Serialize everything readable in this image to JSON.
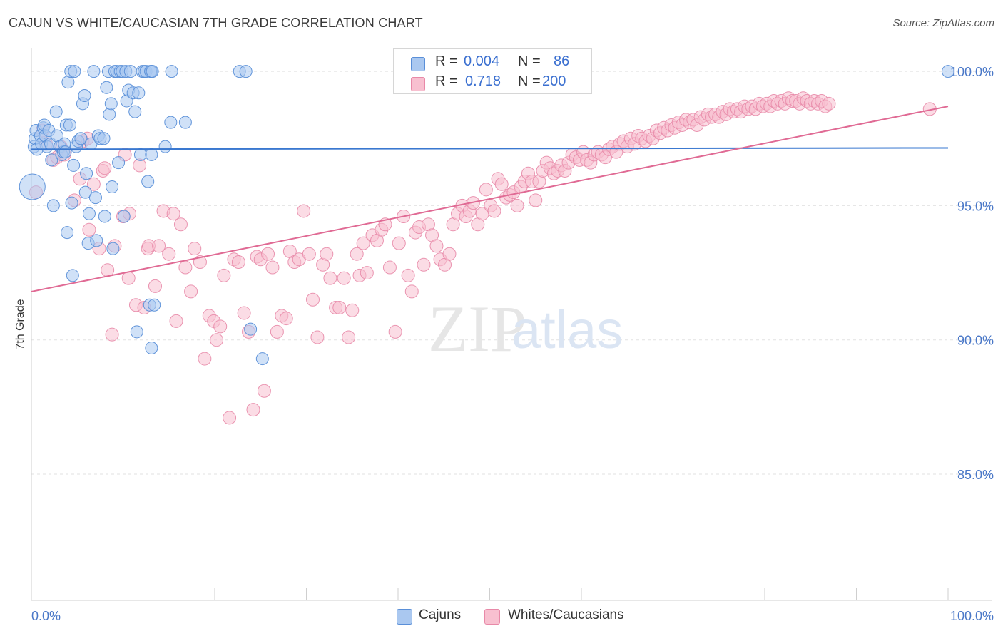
{
  "title": "CAJUN VS WHITE/CAUCASIAN 7TH GRADE CORRELATION CHART",
  "source": "Source: ZipAtlas.com",
  "watermark": {
    "zip": "ZIP",
    "atlas": "atlas"
  },
  "legend": {
    "r_label": "R =",
    "n_label": "N =",
    "rows": [
      {
        "name": "Cajuns",
        "r": "0.004",
        "n": "86",
        "fill": "#aac8f0",
        "stroke": "#5a8fd8"
      },
      {
        "name": "Whites/Caucasians",
        "r": "0.718",
        "n": "200",
        "fill": "#f8c0d0",
        "stroke": "#e889a8"
      }
    ]
  },
  "chart_data": {
    "type": "scatter",
    "title": "CAJUN VS WHITE/CAUCASIAN 7TH GRADE CORRELATION CHART",
    "ylabel": "7th Grade",
    "xlabel": "",
    "xlim": [
      0,
      100
    ],
    "ylim": [
      80.3,
      100.8
    ],
    "x_tick_labels": [
      "0.0%",
      "100.0%"
    ],
    "y_ticks": [
      85,
      90,
      95,
      100
    ],
    "y_tick_labels": [
      "85.0%",
      "90.0%",
      "95.0%",
      "100.0%"
    ],
    "series": [
      {
        "name": "Cajuns",
        "color": "#5a8fd8",
        "fill": "#aac8f0",
        "trend": {
          "x": [
            0,
            100
          ],
          "y": [
            97.1,
            97.15
          ]
        },
        "points": [
          [
            0.1,
            95.7
          ],
          [
            0.3,
            97.2
          ],
          [
            0.4,
            97.5
          ],
          [
            0.5,
            97.8
          ],
          [
            0.6,
            97.1
          ],
          [
            1.0,
            97.6
          ],
          [
            1.1,
            97.3
          ],
          [
            1.3,
            97.9
          ],
          [
            1.4,
            98.0
          ],
          [
            1.5,
            97.6
          ],
          [
            1.7,
            97.2
          ],
          [
            1.9,
            97.8
          ],
          [
            2.1,
            97.3
          ],
          [
            2.2,
            96.7
          ],
          [
            2.4,
            95.0
          ],
          [
            2.7,
            98.5
          ],
          [
            2.8,
            97.6
          ],
          [
            3.1,
            97.2
          ],
          [
            3.3,
            96.9
          ],
          [
            3.5,
            97.0
          ],
          [
            3.6,
            97.3
          ],
          [
            3.7,
            97.0
          ],
          [
            3.8,
            98.0
          ],
          [
            3.9,
            94.0
          ],
          [
            4.0,
            99.6
          ],
          [
            4.2,
            98.0
          ],
          [
            4.3,
            100.0
          ],
          [
            4.4,
            95.1
          ],
          [
            4.5,
            92.4
          ],
          [
            4.6,
            96.5
          ],
          [
            4.7,
            100.0
          ],
          [
            4.9,
            97.2
          ],
          [
            5.1,
            97.4
          ],
          [
            5.4,
            97.5
          ],
          [
            5.6,
            98.8
          ],
          [
            5.8,
            99.1
          ],
          [
            5.9,
            95.5
          ],
          [
            6.0,
            96.2
          ],
          [
            6.2,
            93.6
          ],
          [
            6.3,
            94.7
          ],
          [
            6.5,
            97.3
          ],
          [
            6.8,
            100.0
          ],
          [
            7.0,
            95.3
          ],
          [
            7.1,
            93.7
          ],
          [
            7.3,
            97.6
          ],
          [
            7.5,
            97.5
          ],
          [
            7.9,
            97.5
          ],
          [
            8.0,
            94.6
          ],
          [
            8.2,
            99.4
          ],
          [
            8.4,
            100.0
          ],
          [
            8.5,
            98.4
          ],
          [
            8.7,
            98.8
          ],
          [
            8.8,
            95.7
          ],
          [
            8.9,
            93.4
          ],
          [
            9.1,
            100.0
          ],
          [
            9.3,
            100.0
          ],
          [
            9.5,
            96.6
          ],
          [
            9.7,
            100.0
          ],
          [
            9.9,
            100.0
          ],
          [
            10.1,
            94.6
          ],
          [
            10.3,
            100.0
          ],
          [
            10.4,
            98.9
          ],
          [
            10.6,
            99.3
          ],
          [
            10.8,
            100.0
          ],
          [
            11.1,
            99.2
          ],
          [
            11.3,
            98.5
          ],
          [
            11.5,
            90.3
          ],
          [
            11.7,
            99.2
          ],
          [
            11.9,
            96.9
          ],
          [
            12.1,
            100.0
          ],
          [
            12.3,
            100.0
          ],
          [
            12.5,
            100.0
          ],
          [
            12.7,
            95.9
          ],
          [
            12.9,
            91.3
          ],
          [
            13.1,
            89.7
          ],
          [
            13.4,
            91.3
          ],
          [
            13.1,
            100.0
          ],
          [
            13.0,
            100.0
          ],
          [
            13.2,
            100.0
          ],
          [
            13.1,
            96.9
          ],
          [
            14.6,
            97.2
          ],
          [
            15.2,
            98.1
          ],
          [
            15.3,
            100.0
          ],
          [
            16.8,
            98.1
          ],
          [
            22.7,
            100.0
          ],
          [
            23.4,
            100.0
          ],
          [
            23.9,
            90.4
          ],
          [
            25.2,
            89.3
          ],
          [
            100.0,
            100.0
          ]
        ]
      },
      {
        "name": "Whites/Caucasians",
        "color": "#e889a8",
        "fill": "#f8c0d0",
        "trend": {
          "x": [
            0,
            100
          ],
          "y": [
            91.8,
            98.7
          ]
        },
        "points": [
          [
            0.5,
            95.5
          ],
          [
            1.2,
            97.8
          ],
          [
            1.6,
            97.3
          ],
          [
            2.4,
            96.7
          ],
          [
            2.8,
            96.8
          ],
          [
            3.2,
            97.2
          ],
          [
            3.6,
            96.9
          ],
          [
            4.7,
            95.2
          ],
          [
            5.3,
            96.0
          ],
          [
            5.6,
            97.4
          ],
          [
            6.1,
            97.5
          ],
          [
            6.3,
            94.1
          ],
          [
            6.8,
            95.8
          ],
          [
            7.4,
            93.4
          ],
          [
            7.8,
            96.3
          ],
          [
            8.0,
            96.4
          ],
          [
            8.3,
            92.6
          ],
          [
            8.8,
            90.2
          ],
          [
            9.1,
            93.5
          ],
          [
            10.0,
            94.6
          ],
          [
            10.2,
            96.9
          ],
          [
            10.6,
            92.3
          ],
          [
            10.7,
            94.7
          ],
          [
            11.4,
            91.3
          ],
          [
            11.8,
            96.5
          ],
          [
            12.3,
            91.2
          ],
          [
            12.7,
            93.4
          ],
          [
            12.8,
            93.5
          ],
          [
            13.5,
            92.0
          ],
          [
            13.9,
            93.5
          ],
          [
            14.4,
            94.8
          ],
          [
            15.0,
            93.2
          ],
          [
            15.5,
            94.7
          ],
          [
            15.8,
            90.7
          ],
          [
            16.3,
            94.3
          ],
          [
            16.8,
            92.7
          ],
          [
            17.4,
            91.8
          ],
          [
            17.8,
            93.4
          ],
          [
            18.4,
            92.9
          ],
          [
            18.9,
            89.3
          ],
          [
            19.4,
            90.9
          ],
          [
            19.9,
            90.7
          ],
          [
            20.2,
            90.0
          ],
          [
            20.6,
            90.5
          ],
          [
            21.0,
            92.4
          ],
          [
            21.6,
            87.1
          ],
          [
            22.1,
            93.0
          ],
          [
            22.6,
            92.9
          ],
          [
            23.2,
            91.0
          ],
          [
            23.7,
            90.3
          ],
          [
            24.2,
            87.4
          ],
          [
            24.6,
            93.1
          ],
          [
            25.0,
            93.0
          ],
          [
            25.4,
            88.1
          ],
          [
            25.8,
            93.2
          ],
          [
            26.3,
            92.7
          ],
          [
            26.8,
            90.3
          ],
          [
            27.3,
            90.9
          ],
          [
            27.8,
            90.8
          ],
          [
            28.2,
            93.3
          ],
          [
            28.7,
            92.9
          ],
          [
            29.2,
            93.0
          ],
          [
            29.7,
            94.8
          ],
          [
            30.3,
            93.2
          ],
          [
            30.7,
            91.5
          ],
          [
            31.2,
            90.1
          ],
          [
            31.8,
            92.8
          ],
          [
            32.2,
            93.2
          ],
          [
            32.6,
            92.3
          ],
          [
            33.2,
            91.2
          ],
          [
            33.6,
            91.2
          ],
          [
            34.1,
            92.3
          ],
          [
            34.6,
            90.1
          ],
          [
            35.0,
            91.1
          ],
          [
            35.5,
            93.2
          ],
          [
            35.8,
            92.4
          ],
          [
            36.2,
            93.6
          ],
          [
            36.6,
            92.5
          ],
          [
            37.2,
            93.9
          ],
          [
            37.7,
            93.7
          ],
          [
            38.2,
            94.1
          ],
          [
            38.6,
            94.3
          ],
          [
            39.1,
            92.7
          ],
          [
            39.7,
            90.3
          ],
          [
            40.1,
            93.6
          ],
          [
            40.6,
            94.6
          ],
          [
            41.1,
            92.4
          ],
          [
            41.5,
            91.8
          ],
          [
            41.9,
            94.0
          ],
          [
            42.3,
            94.2
          ],
          [
            42.8,
            92.8
          ],
          [
            43.3,
            94.3
          ],
          [
            43.7,
            93.9
          ],
          [
            44.2,
            93.5
          ],
          [
            44.6,
            93.0
          ],
          [
            45.1,
            92.8
          ],
          [
            45.6,
            93.2
          ],
          [
            46.0,
            94.3
          ],
          [
            46.5,
            94.7
          ],
          [
            47.0,
            95.0
          ],
          [
            47.4,
            94.6
          ],
          [
            47.8,
            94.8
          ],
          [
            48.2,
            95.1
          ],
          [
            48.7,
            94.3
          ],
          [
            49.2,
            94.7
          ],
          [
            49.6,
            95.6
          ],
          [
            50.1,
            95.0
          ],
          [
            50.5,
            94.8
          ],
          [
            50.9,
            96.0
          ],
          [
            51.3,
            95.8
          ],
          [
            51.8,
            95.3
          ],
          [
            52.2,
            95.4
          ],
          [
            52.6,
            95.5
          ],
          [
            53.0,
            95.0
          ],
          [
            53.4,
            95.7
          ],
          [
            53.8,
            95.9
          ],
          [
            54.2,
            96.2
          ],
          [
            54.6,
            95.9
          ],
          [
            55.0,
            95.2
          ],
          [
            55.4,
            95.9
          ],
          [
            55.8,
            96.3
          ],
          [
            56.2,
            96.6
          ],
          [
            56.6,
            96.4
          ],
          [
            57.0,
            96.2
          ],
          [
            57.4,
            96.3
          ],
          [
            57.8,
            96.5
          ],
          [
            58.2,
            96.3
          ],
          [
            58.6,
            96.6
          ],
          [
            59.0,
            96.9
          ],
          [
            59.4,
            96.8
          ],
          [
            59.8,
            96.7
          ],
          [
            60.2,
            97.0
          ],
          [
            60.6,
            96.7
          ],
          [
            61.0,
            96.6
          ],
          [
            61.4,
            96.9
          ],
          [
            61.8,
            97.0
          ],
          [
            62.2,
            96.9
          ],
          [
            62.6,
            96.8
          ],
          [
            63.0,
            97.1
          ],
          [
            63.4,
            97.2
          ],
          [
            63.8,
            97.0
          ],
          [
            64.2,
            97.3
          ],
          [
            64.6,
            97.4
          ],
          [
            65.0,
            97.2
          ],
          [
            65.4,
            97.5
          ],
          [
            65.8,
            97.3
          ],
          [
            66.2,
            97.6
          ],
          [
            66.6,
            97.5
          ],
          [
            67.0,
            97.4
          ],
          [
            67.4,
            97.6
          ],
          [
            67.8,
            97.5
          ],
          [
            68.2,
            97.8
          ],
          [
            68.6,
            97.7
          ],
          [
            69.0,
            97.9
          ],
          [
            69.4,
            97.8
          ],
          [
            69.8,
            98.0
          ],
          [
            70.2,
            97.9
          ],
          [
            70.6,
            98.1
          ],
          [
            71.0,
            98.0
          ],
          [
            71.4,
            98.2
          ],
          [
            71.8,
            98.1
          ],
          [
            72.2,
            98.2
          ],
          [
            72.6,
            98.0
          ],
          [
            73.0,
            98.3
          ],
          [
            73.4,
            98.2
          ],
          [
            73.8,
            98.4
          ],
          [
            74.2,
            98.3
          ],
          [
            74.6,
            98.4
          ],
          [
            75.0,
            98.3
          ],
          [
            75.4,
            98.5
          ],
          [
            75.8,
            98.4
          ],
          [
            76.2,
            98.6
          ],
          [
            76.6,
            98.5
          ],
          [
            77.0,
            98.6
          ],
          [
            77.4,
            98.5
          ],
          [
            77.8,
            98.7
          ],
          [
            78.2,
            98.6
          ],
          [
            78.6,
            98.7
          ],
          [
            79.0,
            98.6
          ],
          [
            79.4,
            98.8
          ],
          [
            79.8,
            98.7
          ],
          [
            80.2,
            98.8
          ],
          [
            80.6,
            98.7
          ],
          [
            81.0,
            98.9
          ],
          [
            81.4,
            98.8
          ],
          [
            81.8,
            98.9
          ],
          [
            82.2,
            98.8
          ],
          [
            82.6,
            99.0
          ],
          [
            83.0,
            98.9
          ],
          [
            83.4,
            98.9
          ],
          [
            83.8,
            98.8
          ],
          [
            84.2,
            99.0
          ],
          [
            84.6,
            98.9
          ],
          [
            85.0,
            98.8
          ],
          [
            85.4,
            98.9
          ],
          [
            85.8,
            98.8
          ],
          [
            86.2,
            98.9
          ],
          [
            86.6,
            98.7
          ],
          [
            87.0,
            98.8
          ],
          [
            98.0,
            98.6
          ]
        ]
      }
    ]
  }
}
